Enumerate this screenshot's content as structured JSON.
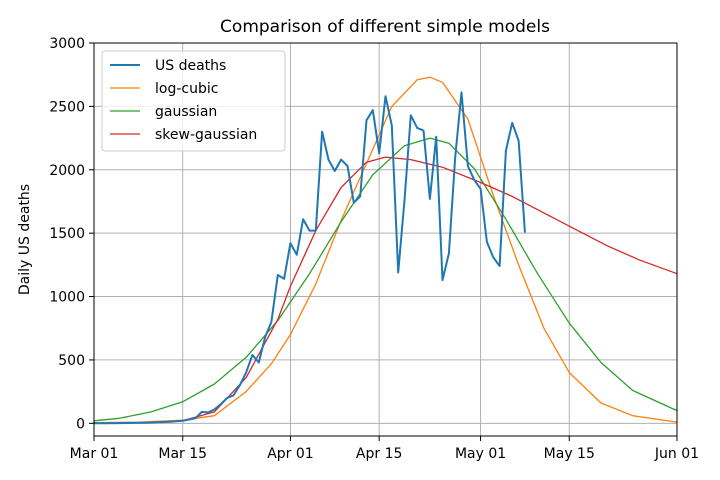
{
  "chart_data": {
    "type": "line",
    "title": "Comparison of different simple models",
    "xlabel": "",
    "ylabel": "Daily US deaths",
    "xlim": [
      "2020-03-01",
      "2020-06-01"
    ],
    "ylim": [
      -100,
      3000
    ],
    "x_ticks": [
      "Mar 01",
      "Mar 15",
      "Apr 01",
      "Apr 15",
      "May 01",
      "May 15",
      "Jun 01"
    ],
    "x_tick_dates": [
      "2020-03-01",
      "2020-03-15",
      "2020-04-01",
      "2020-04-15",
      "2020-05-01",
      "2020-05-15",
      "2020-06-01"
    ],
    "y_ticks": [
      0,
      500,
      1000,
      1500,
      2000,
      2500,
      3000
    ],
    "grid": true,
    "legend": "top-left",
    "series": [
      {
        "name": "US deaths",
        "color": "#1f77b4",
        "x": [
          "2020-03-01",
          "2020-03-03",
          "2020-03-05",
          "2020-03-07",
          "2020-03-09",
          "2020-03-11",
          "2020-03-13",
          "2020-03-15",
          "2020-03-17",
          "2020-03-18",
          "2020-03-19",
          "2020-03-20",
          "2020-03-21",
          "2020-03-22",
          "2020-03-23",
          "2020-03-24",
          "2020-03-25",
          "2020-03-26",
          "2020-03-27",
          "2020-03-28",
          "2020-03-29",
          "2020-03-30",
          "2020-03-31",
          "2020-04-01",
          "2020-04-02",
          "2020-04-03",
          "2020-04-04",
          "2020-04-05",
          "2020-04-06",
          "2020-04-07",
          "2020-04-08",
          "2020-04-09",
          "2020-04-10",
          "2020-04-11",
          "2020-04-12",
          "2020-04-13",
          "2020-04-14",
          "2020-04-15",
          "2020-04-16",
          "2020-04-17",
          "2020-04-18",
          "2020-04-19",
          "2020-04-20",
          "2020-04-21",
          "2020-04-22",
          "2020-04-23",
          "2020-04-24",
          "2020-04-25",
          "2020-04-26",
          "2020-04-27",
          "2020-04-28",
          "2020-04-29",
          "2020-04-30",
          "2020-05-01",
          "2020-05-02",
          "2020-05-03",
          "2020-05-04",
          "2020-05-05",
          "2020-05-06",
          "2020-05-07",
          "2020-05-08"
        ],
        "y": [
          1,
          1,
          2,
          3,
          5,
          8,
          12,
          20,
          40,
          90,
          85,
          110,
          150,
          200,
          220,
          300,
          400,
          540,
          480,
          680,
          800,
          1170,
          1140,
          1420,
          1330,
          1610,
          1520,
          1520,
          2300,
          2080,
          1990,
          2080,
          2030,
          1740,
          1790,
          2390,
          2470,
          2130,
          2580,
          2350,
          1190,
          1760,
          2430,
          2330,
          2310,
          1770,
          2260,
          1130,
          1340,
          2100,
          2610,
          2030,
          1920,
          1850,
          1430,
          1310,
          1240,
          2150,
          2370,
          2230,
          1510
        ]
      },
      {
        "name": "log-cubic",
        "color": "#ff7f0e",
        "x": [
          "2020-03-01",
          "2020-03-08",
          "2020-03-15",
          "2020-03-20",
          "2020-03-25",
          "2020-03-29",
          "2020-04-01",
          "2020-04-05",
          "2020-04-09",
          "2020-04-13",
          "2020-04-17",
          "2020-04-21",
          "2020-04-23",
          "2020-04-25",
          "2020-04-29",
          "2020-05-03",
          "2020-05-07",
          "2020-05-11",
          "2020-05-15",
          "2020-05-20",
          "2020-05-25",
          "2020-06-01"
        ],
        "y": [
          5,
          10,
          25,
          60,
          250,
          470,
          700,
          1100,
          1600,
          2050,
          2500,
          2710,
          2730,
          2690,
          2400,
          1800,
          1250,
          750,
          400,
          160,
          60,
          10
        ]
      },
      {
        "name": "gaussian",
        "color": "#2ca02c",
        "x": [
          "2020-03-01",
          "2020-03-05",
          "2020-03-10",
          "2020-03-15",
          "2020-03-20",
          "2020-03-25",
          "2020-03-30",
          "2020-04-04",
          "2020-04-09",
          "2020-04-14",
          "2020-04-19",
          "2020-04-23",
          "2020-04-26",
          "2020-04-30",
          "2020-05-05",
          "2020-05-10",
          "2020-05-15",
          "2020-05-20",
          "2020-05-25",
          "2020-06-01"
        ],
        "y": [
          20,
          40,
          90,
          170,
          310,
          520,
          810,
          1180,
          1590,
          1960,
          2190,
          2250,
          2210,
          2010,
          1610,
          1180,
          790,
          480,
          260,
          100
        ]
      },
      {
        "name": "skew-gaussian",
        "color": "#d62728",
        "x": [
          "2020-03-01",
          "2020-03-10",
          "2020-03-15",
          "2020-03-20",
          "2020-03-25",
          "2020-03-30",
          "2020-04-01",
          "2020-04-05",
          "2020-04-09",
          "2020-04-13",
          "2020-04-16",
          "2020-04-20",
          "2020-04-25",
          "2020-05-01",
          "2020-05-06",
          "2020-05-11",
          "2020-05-16",
          "2020-05-21",
          "2020-05-26",
          "2020-06-01"
        ],
        "y": [
          0,
          5,
          20,
          90,
          360,
          820,
          1080,
          1520,
          1860,
          2060,
          2100,
          2080,
          2020,
          1900,
          1790,
          1660,
          1530,
          1400,
          1290,
          1180
        ]
      }
    ]
  }
}
